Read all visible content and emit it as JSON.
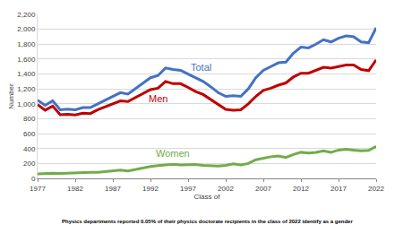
{
  "chart_data": {
    "type": "line",
    "x_label": "Class of",
    "y_label": "Number",
    "caption": "Physics departments reported 0.05% of their physics doctorate recipients in the class of 2022 identify as a gender",
    "x": [
      1977,
      1978,
      1979,
      1980,
      1981,
      1982,
      1983,
      1984,
      1985,
      1986,
      1987,
      1988,
      1989,
      1990,
      1991,
      1992,
      1993,
      1994,
      1995,
      1996,
      1997,
      1998,
      1999,
      2000,
      2001,
      2002,
      2003,
      2004,
      2005,
      2006,
      2007,
      2008,
      2009,
      2010,
      2011,
      2012,
      2013,
      2014,
      2015,
      2016,
      2017,
      2018,
      2019,
      2020,
      2021,
      2022
    ],
    "series": [
      {
        "name": "Total",
        "color": "#4472c4",
        "values": [
          1050,
          980,
          1040,
          920,
          930,
          920,
          950,
          950,
          1000,
          1050,
          1100,
          1150,
          1130,
          1200,
          1270,
          1350,
          1380,
          1480,
          1460,
          1450,
          1400,
          1350,
          1300,
          1230,
          1150,
          1100,
          1110,
          1100,
          1200,
          1350,
          1450,
          1500,
          1550,
          1560,
          1680,
          1760,
          1750,
          1800,
          1860,
          1830,
          1880,
          1910,
          1900,
          1830,
          1820,
          2020
        ]
      },
      {
        "name": "Men",
        "color": "#c00000",
        "values": [
          990,
          915,
          970,
          855,
          860,
          850,
          875,
          870,
          920,
          960,
          1000,
          1040,
          1030,
          1080,
          1130,
          1190,
          1210,
          1300,
          1270,
          1270,
          1220,
          1165,
          1125,
          1060,
          985,
          925,
          915,
          920,
          1000,
          1100,
          1180,
          1210,
          1250,
          1280,
          1360,
          1410,
          1410,
          1450,
          1490,
          1480,
          1500,
          1520,
          1520,
          1460,
          1445,
          1590
        ]
      },
      {
        "name": "Women",
        "color": "#70ad47",
        "values": [
          60,
          65,
          70,
          65,
          70,
          70,
          75,
          80,
          80,
          90,
          100,
          110,
          100,
          120,
          140,
          160,
          170,
          180,
          190,
          180,
          180,
          185,
          175,
          170,
          165,
          175,
          195,
          180,
          200,
          250,
          270,
          290,
          300,
          280,
          320,
          350,
          340,
          350,
          370,
          350,
          380,
          390,
          380,
          370,
          375,
          430
        ]
      }
    ],
    "xlim": [
      1977,
      2022
    ],
    "xticks": [
      1977,
      1982,
      1987,
      1992,
      1997,
      2002,
      2007,
      2012,
      2017,
      2022
    ],
    "ylim": [
      0,
      2200
    ],
    "yticks": [
      0,
      200,
      400,
      600,
      800,
      {
        "value": 1000,
        "label": "1,000"
      },
      {
        "value": 1200,
        "label": "1,200"
      },
      {
        "value": 1400,
        "label": "1,400"
      },
      {
        "value": 1600,
        "label": "1,600"
      },
      {
        "value": 1800,
        "label": "1,800"
      },
      {
        "value": 2000,
        "label": "2,000"
      },
      {
        "value": 2200,
        "label": "2,200"
      }
    ],
    "grid": true
  }
}
